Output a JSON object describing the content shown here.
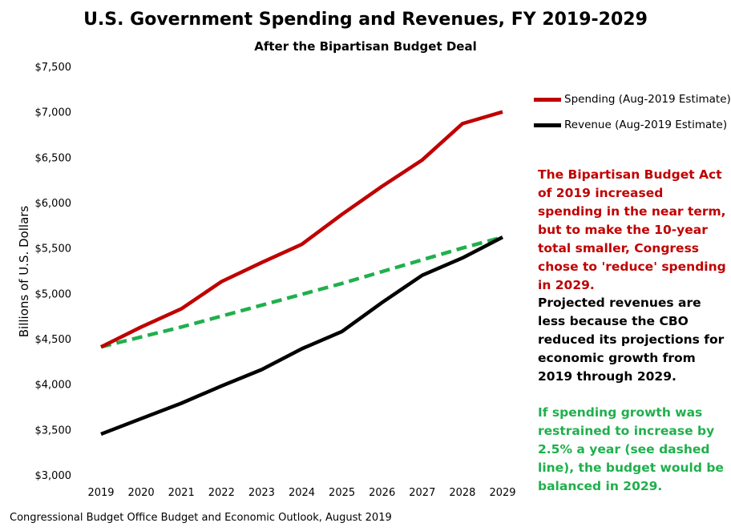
{
  "colors": {
    "spending": "#c00000",
    "revenue": "#000000",
    "restrained": "#1fb04c",
    "note_spending": "#c00000",
    "note_revenue": "#000000",
    "note_restrained": "#1fb04c"
  },
  "chart_data": {
    "type": "line",
    "title": "U.S. Government Spending and Revenues, FY 2019-2029",
    "subtitle": "After the Bipartisan  Budget Deal",
    "ylabel": "Billions of U.S. Dollars",
    "xlabel": "",
    "ylim": [
      3000,
      7500
    ],
    "yticks": [
      3000,
      3500,
      4000,
      4500,
      5000,
      5500,
      6000,
      6500,
      7000,
      7500
    ],
    "ytick_labels": [
      "$3,000",
      "$3,500",
      "$4,000",
      "$4,500",
      "$5,000",
      "$5,500",
      "$6,000",
      "$6,500",
      "$7,000",
      "$7,500"
    ],
    "grid": false,
    "legend_position": "top-right",
    "x": [
      "2019",
      "2020",
      "2021",
      "2022",
      "2023",
      "2024",
      "2025",
      "2026",
      "2027",
      "2028",
      "2029"
    ],
    "series": [
      {
        "name": "Spending (Aug-2019 Estimate)",
        "style": "solid",
        "values": [
          4410,
          4630,
          4830,
          5130,
          5340,
          5540,
          5870,
          6180,
          6470,
          6870,
          7000
        ]
      },
      {
        "name": "Revenue (Aug-2019 Estimate)",
        "style": "solid",
        "values": [
          3450,
          3620,
          3790,
          3980,
          4160,
          4390,
          4580,
          4900,
          5200,
          5390,
          5620
        ]
      },
      {
        "name": "",
        "style": "dashed",
        "values": [
          4410,
          4520,
          4630,
          4750,
          4870,
          4990,
          5110,
          5240,
          5370,
          5500,
          5620
        ]
      }
    ],
    "annotations": [
      "The Bipartisan Budget Act of 2019 increased spending in the near term, but to make the 10-year total smaller, Congress chose to 'reduce' spending in 2029.",
      "Projected revenues are less because the CBO reduced its projections for economic growth from 2019 through 2029.",
      "If spending growth was restrained to increase by 2.5% a year (see dashed line), the budget would be balanced in 2029."
    ],
    "source": "Congressional Budget Office Budget and Economic Outlook, August 2019"
  }
}
